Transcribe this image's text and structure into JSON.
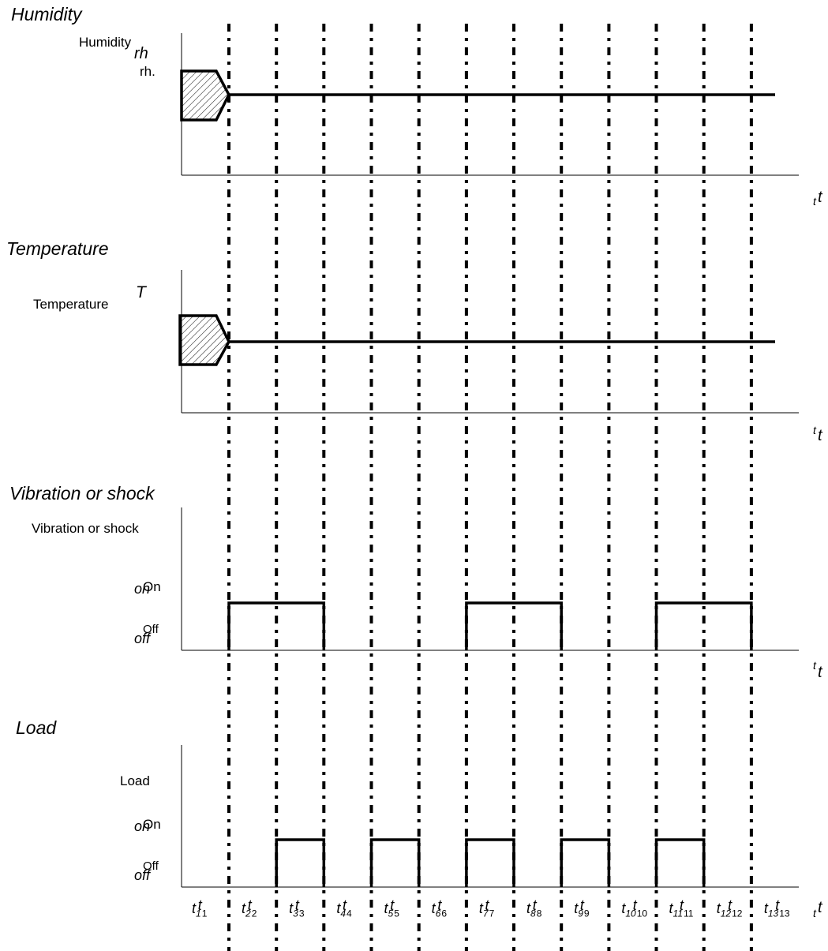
{
  "panels": [
    {
      "title": "Humidity",
      "ylabel": "Humidity",
      "ysymbol": "rh",
      "yunit": "rh.",
      "tlabel_small": "t",
      "tlabel": "t"
    },
    {
      "title": "Temperature",
      "ylabel": "Temperature",
      "ysymbol": "T",
      "tlabel_small": "t",
      "tlabel": "t"
    },
    {
      "title": "Vibration or shock",
      "ylabel": "Vibration or shock",
      "on_a": "on",
      "on_b": "On",
      "off_a": "off",
      "off_b": "Off",
      "tlabel_small": "t",
      "tlabel": "t"
    },
    {
      "title": "Load",
      "ylabel": "Load",
      "on_a": "on",
      "on_b": "On",
      "off_a": "off",
      "off_b": "Off",
      "tlabel_small": "t",
      "tlabel": "t"
    }
  ],
  "time_ticks": [
    {
      "a": "t",
      "a_sub": "1",
      "b": "t",
      "b_sub": "1"
    },
    {
      "a": "t",
      "a_sub": "2",
      "b": "t",
      "b_sub": "2"
    },
    {
      "a": "t",
      "a_sub": "3",
      "b": "t",
      "b_sub": "3"
    },
    {
      "a": "t",
      "a_sub": "4",
      "b": "t",
      "b_sub": "4"
    },
    {
      "a": "t",
      "a_sub": "5",
      "b": "t",
      "b_sub": "5"
    },
    {
      "a": "t",
      "a_sub": "6",
      "b": "t",
      "b_sub": "6"
    },
    {
      "a": "t",
      "a_sub": "7",
      "b": "t",
      "b_sub": "7"
    },
    {
      "a": "t",
      "a_sub": "8",
      "b": "t",
      "b_sub": "8"
    },
    {
      "a": "t",
      "a_sub": "9",
      "b": "t",
      "b_sub": "9"
    },
    {
      "a": "t",
      "a_sub": "10",
      "b": "t",
      "b_sub": "10"
    },
    {
      "a": "t",
      "a_sub": "11",
      "b": "t",
      "b_sub": "11"
    },
    {
      "a": "t",
      "a_sub": "12",
      "b": "t",
      "b_sub": "12"
    },
    {
      "a": "t",
      "a_sub": "13",
      "b": "t",
      "b_sub": "13"
    }
  ],
  "vibration_on_intervals": [
    [
      2,
      4
    ],
    [
      7,
      9
    ],
    [
      11,
      13
    ]
  ],
  "load_on_intervals": [
    [
      3,
      4
    ],
    [
      5,
      6
    ],
    [
      7,
      8
    ],
    [
      9,
      10
    ],
    [
      11,
      12
    ]
  ]
}
